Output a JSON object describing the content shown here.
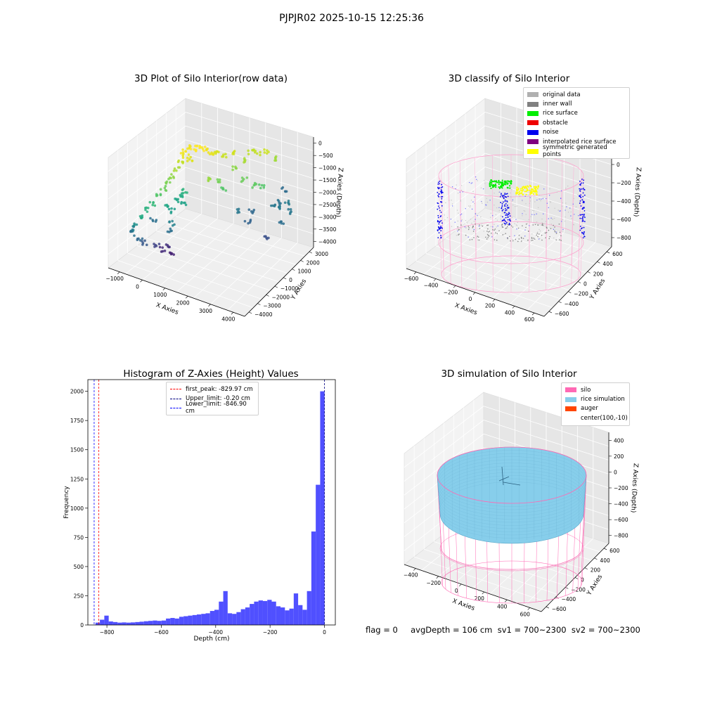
{
  "suptitle": "PJPJR02 2025-10-15 12:25:36",
  "status_text": "flag = 0     avgDepth = 106 cm  sv1 = 700~2300  sv2 = 700~2300",
  "chart_data": [
    {
      "type": "scatter3d",
      "title": "3D Plot of Silo Interior(row data)",
      "xlabel": "X Axies",
      "ylabel": "Y Axies",
      "zlabel": "Z Axies (Depth)",
      "xticks": [
        "−1000",
        "0",
        "1000",
        "2000",
        "3000",
        "4000"
      ],
      "yticks": [
        "−4000",
        "−3000",
        "−2000",
        "−1000",
        "0",
        "1000",
        "2000",
        "3000"
      ],
      "zticks": [
        "0",
        "−500",
        "−1000",
        "−1500",
        "−2000",
        "−2500",
        "−3000",
        "−3500",
        "−4000"
      ],
      "xlim": [
        -1500,
        4200
      ],
      "ylim": [
        -4200,
        3200
      ],
      "zlim": [
        -4300,
        300
      ],
      "colormap": "viridis by depth",
      "grid": true
    },
    {
      "type": "scatter3d",
      "title": "3D classify of Silo Interior",
      "xlabel": "X Axies",
      "ylabel": "Y Axies",
      "zlabel": "Z Axies (Depth)",
      "xticks": [
        "−600",
        "−400",
        "−200",
        "0",
        "200",
        "400",
        "600"
      ],
      "yticks": [
        "−600",
        "−400",
        "−200",
        "0",
        "200",
        "400",
        "600"
      ],
      "zticks": [
        "200",
        "0",
        "−200",
        "−400",
        "−600",
        "−800"
      ],
      "xlim": [
        -650,
        700
      ],
      "ylim": [
        -650,
        700
      ],
      "zlim": [
        -900,
        300
      ],
      "legend": [
        {
          "label": "original data",
          "color": "#b0b0b0"
        },
        {
          "label": "inner wall",
          "color": "#808080"
        },
        {
          "label": "rice surface",
          "color": "#00ee00"
        },
        {
          "label": "obstacle",
          "color": "#ee0000"
        },
        {
          "label": "noise",
          "color": "#0000ee"
        },
        {
          "label": "interpolated rice surface",
          "color": "#800080"
        },
        {
          "label": "symmetric generated points",
          "color": "#ffff00"
        }
      ],
      "legend_loc": "upper right",
      "grid": true
    },
    {
      "type": "histogram",
      "title": "Histogram of Z-Axies (Height) Values",
      "xlabel": "Depth (cm)",
      "ylabel": "Frequency",
      "xlim": [
        -870,
        40
      ],
      "ylim": [
        0,
        2100
      ],
      "xticks": [
        -800,
        -600,
        -400,
        -200,
        0
      ],
      "yticks": [
        0,
        250,
        500,
        750,
        1000,
        1250,
        1500,
        1750,
        2000
      ],
      "bin_width": 16.2,
      "bins_start": -842,
      "counts": [
        20,
        45,
        80,
        30,
        25,
        20,
        22,
        20,
        22,
        25,
        28,
        32,
        35,
        38,
        35,
        38,
        55,
        60,
        55,
        70,
        75,
        80,
        85,
        90,
        95,
        100,
        120,
        130,
        200,
        290,
        100,
        95,
        110,
        135,
        150,
        180,
        200,
        210,
        205,
        215,
        200,
        160,
        150,
        125,
        140,
        270,
        170,
        130,
        290,
        800,
        1200,
        2000
      ],
      "bar_color": "#5050ff",
      "lines": [
        {
          "label": "first_peak: -829.97 cm",
          "x": -829.97,
          "color": "#ff0000"
        },
        {
          "label": "Upper_limit: -0.20 cm",
          "x": -0.2,
          "color": "#000080"
        },
        {
          "label": "Lower_limit: -846.90 cm",
          "x": -846.9,
          "color": "#0000ff"
        }
      ],
      "legend_loc": "upper center"
    },
    {
      "type": "surface3d",
      "title": "3D simulation of Silo Interior",
      "xlabel": "X Axies",
      "ylabel": "Y Axies",
      "zlabel": "Z Axies (Depth)",
      "xticks": [
        "−400",
        "−200",
        "0",
        "200",
        "400",
        "600"
      ],
      "yticks": [
        "−600",
        "−400",
        "−200",
        "0",
        "200",
        "400",
        "600"
      ],
      "zticks": [
        "400",
        "200",
        "0",
        "−200",
        "−400",
        "−600",
        "−800"
      ],
      "xlim": [
        -550,
        700
      ],
      "ylim": [
        -700,
        700
      ],
      "zlim": [
        -950,
        450
      ],
      "legend": [
        {
          "label": "silo",
          "color": "#ff69b4"
        },
        {
          "label": "rice simulation",
          "color": "#87ceeb"
        },
        {
          "label": "auger",
          "color": "#ff4500"
        },
        {
          "label": "center(100,-10)",
          "color": ""
        }
      ],
      "legend_loc": "upper right",
      "grid": true
    }
  ]
}
